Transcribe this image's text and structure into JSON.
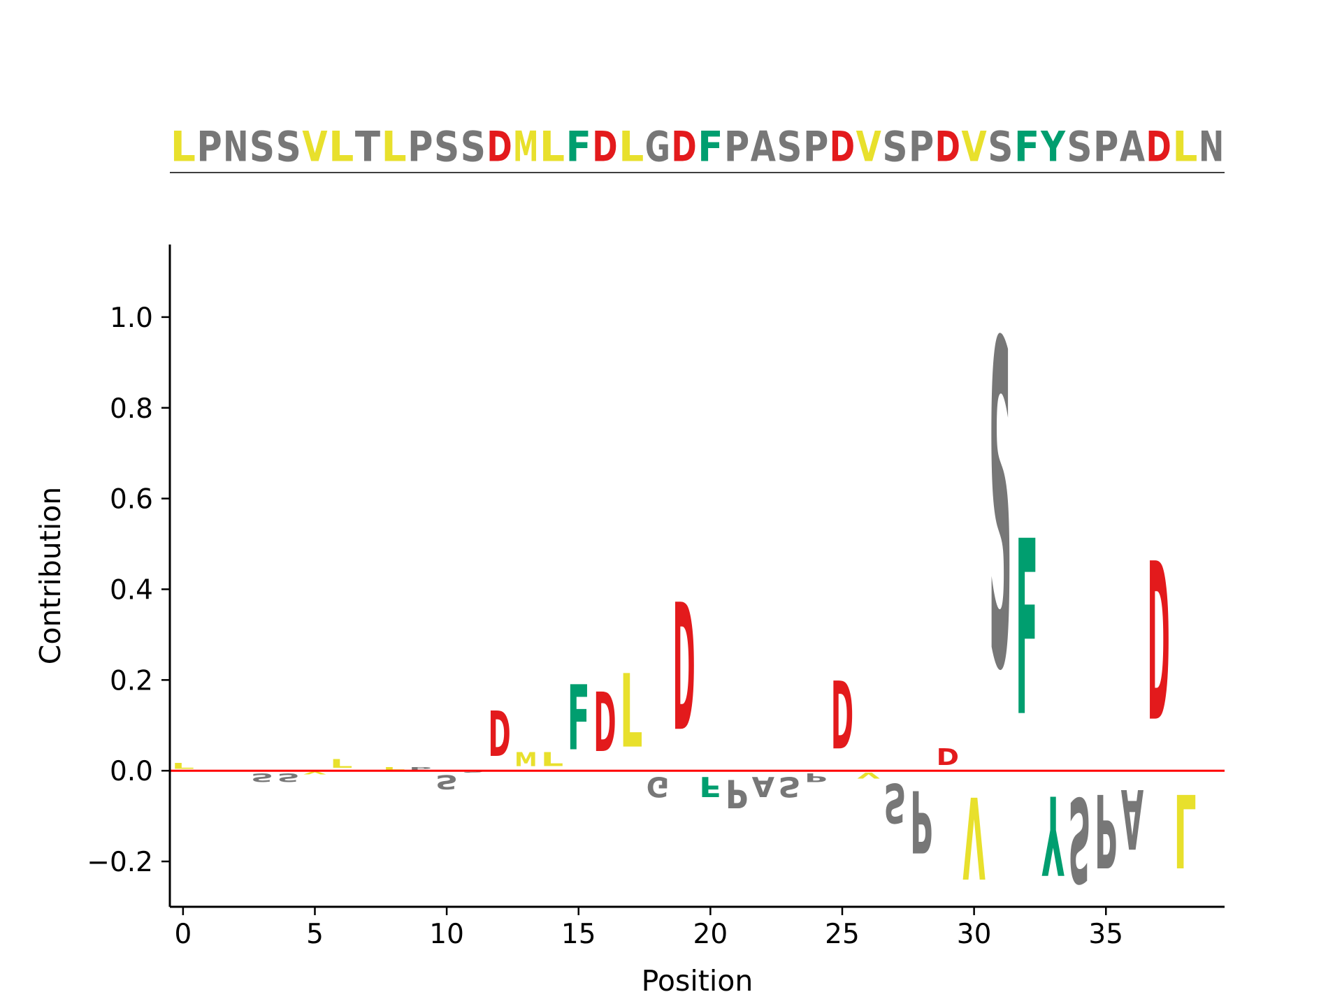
{
  "chart_data": {
    "type": "sequence-logo",
    "title": "",
    "xlabel": "Position",
    "ylabel": "Contribution",
    "xlim": [
      -0.5,
      39.5
    ],
    "ylim": [
      -0.3,
      1.16
    ],
    "xticks": [
      0,
      5,
      10,
      15,
      20,
      25,
      30,
      35
    ],
    "yticks": [
      -0.2,
      0.0,
      0.2,
      0.4,
      0.6,
      0.8,
      1.0
    ],
    "ytick_labels": [
      "−0.2",
      "0.0",
      "0.2",
      "0.4",
      "0.6",
      "0.8",
      "1.0"
    ],
    "sequence": "LPNSSVLTLPSSDMLFDLGDFPASPDVSPDVSFYSPADLN",
    "contributions": [
      0.02,
      0.0,
      0.0,
      -0.03,
      -0.03,
      -0.01,
      0.03,
      0.0,
      0.01,
      0.01,
      -0.05,
      -0.005,
      0.16,
      0.05,
      0.05,
      0.23,
      0.21,
      0.26,
      -0.07,
      0.45,
      -0.07,
      -0.1,
      -0.07,
      -0.07,
      -0.03,
      0.24,
      -0.02,
      -0.14,
      -0.22,
      0.06,
      -0.29,
      1.15,
      0.62,
      -0.28,
      -0.3,
      -0.26,
      -0.21,
      0.56,
      -0.26,
      0.0
    ],
    "colors": {
      "hydrophobic_LVM": "#e8e02c",
      "aromatic_FY": "#009e6f",
      "acidic_D": "#e31a1c",
      "acidic_D_negative": "#b22222",
      "other": "#777777",
      "zero_line": "#ff0000"
    }
  }
}
